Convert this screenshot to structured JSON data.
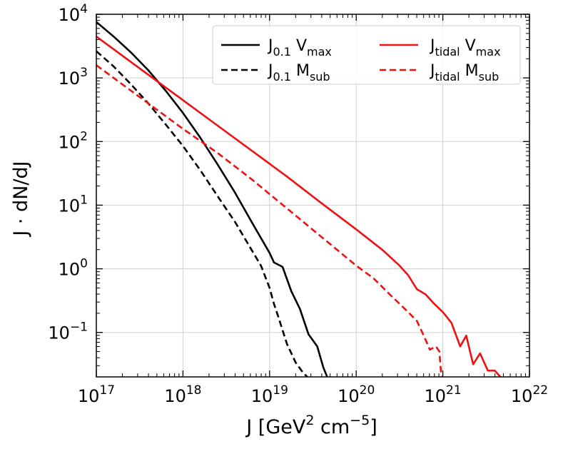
{
  "chart_data": {
    "type": "line",
    "xlabel": {
      "main": "J [GeV",
      "sup1": "2",
      "mid": " cm",
      "sup2": "−5",
      "end": "]"
    },
    "ylabel": "J · dN/dJ",
    "xscale": "log",
    "yscale": "log",
    "xlim": [
      1e+17,
      1e+22
    ],
    "ylim": [
      0.02,
      10000
    ],
    "grid": true,
    "legend_position": "top-right",
    "x_ticks": [
      {
        "base": "10",
        "exp": "17"
      },
      {
        "base": "10",
        "exp": "18"
      },
      {
        "base": "10",
        "exp": "19"
      },
      {
        "base": "10",
        "exp": "20"
      },
      {
        "base": "10",
        "exp": "21"
      },
      {
        "base": "10",
        "exp": "22"
      }
    ],
    "y_ticks": [
      {
        "base": "10",
        "exp": "−1",
        "value": 0.1
      },
      {
        "base": "10",
        "exp": "0",
        "value": 1
      },
      {
        "base": "10",
        "exp": "1",
        "value": 10
      },
      {
        "base": "10",
        "exp": "2",
        "value": 100
      },
      {
        "base": "10",
        "exp": "3",
        "value": 1000
      },
      {
        "base": "10",
        "exp": "4",
        "value": 10000
      }
    ],
    "series": [
      {
        "name": "J0.1 Vmax",
        "label_main": "J",
        "label_sub": "0.1",
        "label_after": " V",
        "label_sub2": "max",
        "color": "#000000",
        "dash": "solid",
        "points": [
          [
            17.0,
            3.88
          ],
          [
            17.2,
            3.65
          ],
          [
            17.4,
            3.4
          ],
          [
            17.6,
            3.12
          ],
          [
            17.8,
            2.8
          ],
          [
            18.0,
            2.45
          ],
          [
            18.2,
            2.06
          ],
          [
            18.4,
            1.64
          ],
          [
            18.6,
            1.2
          ],
          [
            18.8,
            0.72
          ],
          [
            19.0,
            0.25
          ],
          [
            19.05,
            0.1
          ],
          [
            19.15,
            0.03
          ],
          [
            19.25,
            -0.35
          ],
          [
            19.35,
            -0.63
          ],
          [
            19.45,
            -1.03
          ],
          [
            19.55,
            -1.22
          ],
          [
            19.62,
            -1.55
          ],
          [
            19.68,
            -1.75
          ]
        ]
      },
      {
        "name": "J0.1 Msub",
        "label_main": "J",
        "label_sub": "0.1",
        "label_after": " M",
        "label_sub2": "sub",
        "color": "#000000",
        "dash": "dashed",
        "points": [
          [
            17.0,
            3.42
          ],
          [
            17.2,
            3.18
          ],
          [
            17.4,
            2.9
          ],
          [
            17.6,
            2.6
          ],
          [
            17.8,
            2.27
          ],
          [
            18.0,
            1.93
          ],
          [
            18.2,
            1.55
          ],
          [
            18.4,
            1.14
          ],
          [
            18.6,
            0.74
          ],
          [
            18.8,
            0.28
          ],
          [
            18.9,
            0.05
          ],
          [
            19.0,
            -0.3
          ],
          [
            19.05,
            -0.55
          ],
          [
            19.1,
            -0.75
          ],
          [
            19.2,
            -1.18
          ],
          [
            19.3,
            -1.47
          ],
          [
            19.38,
            -1.62
          ],
          [
            19.45,
            -1.72
          ]
        ]
      },
      {
        "name": "Jtidal Vmax",
        "label_main": "J",
        "label_sub": "tidal",
        "label_after": " V",
        "label_sub2": "max",
        "color": "#ee1111",
        "dash": "solid",
        "points": [
          [
            17.0,
            3.65
          ],
          [
            17.3,
            3.35
          ],
          [
            17.6,
            3.05
          ],
          [
            18.0,
            2.65
          ],
          [
            18.4,
            2.25
          ],
          [
            18.8,
            1.85
          ],
          [
            19.2,
            1.45
          ],
          [
            19.6,
            1.03
          ],
          [
            20.0,
            0.62
          ],
          [
            20.3,
            0.3
          ],
          [
            20.5,
            0.05
          ],
          [
            20.6,
            -0.1
          ],
          [
            20.7,
            -0.32
          ],
          [
            20.8,
            -0.4
          ],
          [
            20.9,
            -0.55
          ],
          [
            21.0,
            -0.68
          ],
          [
            21.1,
            -0.85
          ],
          [
            21.2,
            -1.22
          ],
          [
            21.27,
            -1.05
          ],
          [
            21.35,
            -1.5
          ],
          [
            21.43,
            -1.33
          ],
          [
            21.52,
            -1.6
          ],
          [
            21.6,
            -1.6
          ],
          [
            21.72,
            -1.78
          ]
        ]
      },
      {
        "name": "Jtidal Msub",
        "label_main": "J",
        "label_sub": "tidal",
        "label_after": " M",
        "label_sub2": "sub",
        "color": "#ee1111",
        "dash": "dashed",
        "points": [
          [
            17.0,
            3.2
          ],
          [
            17.3,
            2.9
          ],
          [
            17.6,
            2.6
          ],
          [
            18.0,
            2.2
          ],
          [
            18.4,
            1.82
          ],
          [
            18.8,
            1.4
          ],
          [
            19.2,
            0.95
          ],
          [
            19.6,
            0.5
          ],
          [
            20.0,
            0.05
          ],
          [
            20.2,
            -0.15
          ],
          [
            20.4,
            -0.42
          ],
          [
            20.6,
            -0.68
          ],
          [
            20.7,
            -0.82
          ],
          [
            20.78,
            -1.05
          ],
          [
            20.85,
            -1.27
          ],
          [
            20.92,
            -1.22
          ],
          [
            20.96,
            -1.3
          ],
          [
            20.98,
            -1.65
          ],
          [
            21.0,
            -1.72
          ]
        ]
      }
    ]
  }
}
